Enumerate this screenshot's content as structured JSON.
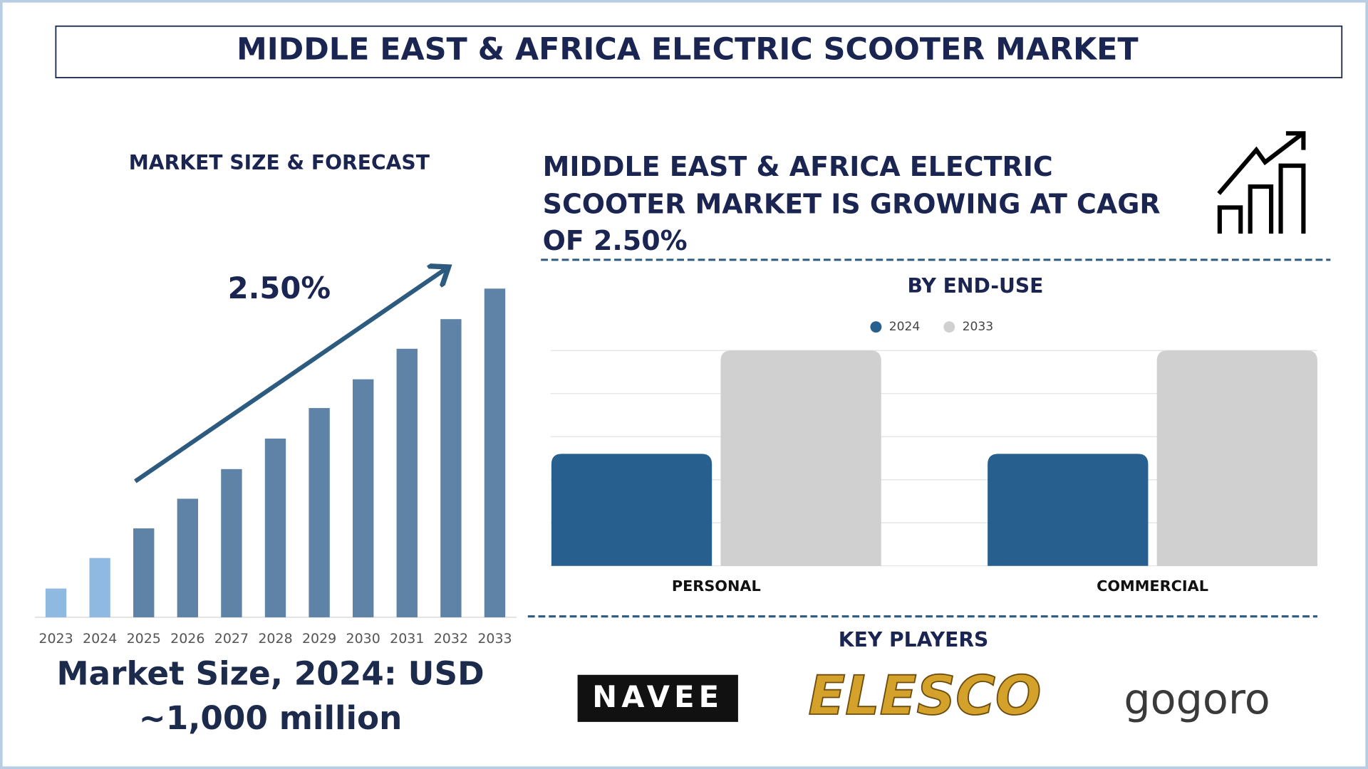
{
  "title": "MIDDLE EAST & AFRICA ELECTRIC SCOOTER MARKET",
  "cagr_text": [
    "MIDDLE EAST & AFRICA ELECTRIC",
    "SCOOTER MARKET IS GROWING AT CAGR",
    "OF 2.50%"
  ],
  "market_size_text": [
    "Market Size, 2024: USD",
    "~1,000 million"
  ],
  "key_players": {
    "title": "KEY PLAYERS",
    "logos": [
      "NAVEE",
      "ELESCO",
      "gogoro"
    ]
  },
  "chart_data": [
    {
      "type": "bar",
      "title": "MARKET SIZE & FORECAST",
      "annotation": "2.50%",
      "categories": [
        "2023",
        "2024",
        "2025",
        "2026",
        "2027",
        "2028",
        "2029",
        "2030",
        "2031",
        "2032",
        "2033"
      ],
      "values": [
        485,
        1000,
        1500,
        2000,
        2500,
        3015,
        3530,
        4015,
        4530,
        5030,
        5545
      ],
      "colors": [
        "#90b9e2",
        "#90b9e2",
        "#5f83a6",
        "#5f83a6",
        "#5f83a6",
        "#5f83a6",
        "#5f83a6",
        "#5f83a6",
        "#5f83a6",
        "#5f83a6",
        "#5f83a6"
      ],
      "ylim": [
        0,
        5545
      ]
    },
    {
      "type": "grouped-bar",
      "title": "BY END-USE",
      "categories": [
        "PERSONAL",
        "COMMERCIAL"
      ],
      "series": [
        {
          "name": "2024",
          "color": "#27608f",
          "values": [
            2.6,
            2.6
          ]
        },
        {
          "name": "2033",
          "color": "#d0d0d0",
          "values": [
            5,
            5
          ]
        }
      ],
      "ylim": [
        0,
        5
      ],
      "yticks": [
        0,
        1,
        2,
        3,
        4,
        5
      ],
      "grid": true
    }
  ]
}
